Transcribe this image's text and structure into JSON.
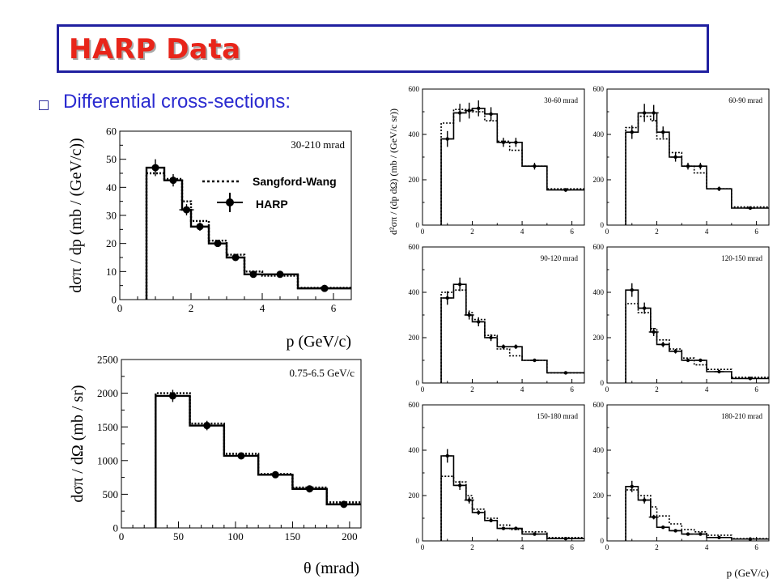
{
  "title": "HARP Data",
  "bullet": "Differential cross-sections:",
  "colors": {
    "title": "#e8251a",
    "title_border": "#2020a0",
    "bullet_text": "#2b2bd0",
    "bullet_box": "#3535a0"
  },
  "chart_data": [
    {
      "type": "line",
      "annotation": "30-210 mrad",
      "xlabel": "p (GeV/c)",
      "ylabel": "dσπ / dp (mb / (GeV/c))",
      "xlim": [
        0,
        6.5
      ],
      "ylim": [
        0,
        60
      ],
      "xticks": [
        "0",
        "2",
        "4",
        "6"
      ],
      "yticks": [
        "0",
        "10",
        "20",
        "30",
        "40",
        "50",
        "60"
      ],
      "legend": [
        "Sangford-Wang",
        "HARP"
      ],
      "series": [
        {
          "name": "Sangford-Wang",
          "style": "dotted step",
          "edges": [
            0.75,
            1.25,
            1.75,
            2.0,
            2.5,
            3.0,
            3.5,
            4.0,
            5.0,
            6.5
          ],
          "values": [
            45.0,
            43.0,
            35.0,
            28.0,
            21.0,
            16.0,
            10.0,
            8.5,
            4.2
          ]
        },
        {
          "name": "HARP",
          "style": "solid step with points",
          "edges": [
            0.75,
            1.25,
            1.75,
            2.0,
            2.5,
            3.0,
            3.5,
            4.0,
            5.0,
            6.5
          ],
          "values": [
            47.0,
            42.5,
            32.0,
            26.0,
            20.0,
            15.0,
            9.0,
            9.0,
            4.0
          ],
          "points": [
            {
              "x": 1.0,
              "y": 47.0,
              "err": 3.0
            },
            {
              "x": 1.5,
              "y": 42.5,
              "err": 2.2
            },
            {
              "x": 1.875,
              "y": 32.0,
              "err": 2.0
            },
            {
              "x": 2.25,
              "y": 26.0,
              "err": 1.5
            },
            {
              "x": 2.75,
              "y": 20.0,
              "err": 1.0
            },
            {
              "x": 3.25,
              "y": 15.0,
              "err": 0.8
            },
            {
              "x": 3.75,
              "y": 9.0,
              "err": 0.6
            },
            {
              "x": 4.5,
              "y": 9.0,
              "err": 0.5
            },
            {
              "x": 5.75,
              "y": 4.0,
              "err": 0.4
            }
          ]
        }
      ]
    },
    {
      "type": "line",
      "annotation": "0.75-6.5 GeV/c",
      "xlabel": "θ (mrad)",
      "ylabel": "dσπ / dΩ (mb / sr)",
      "xlim": [
        0,
        210
      ],
      "ylim": [
        0,
        2500
      ],
      "xticks": [
        "0",
        "50",
        "100",
        "150",
        "200"
      ],
      "yticks": [
        "0",
        "500",
        "1000",
        "1500",
        "2000",
        "2500"
      ],
      "series": [
        {
          "name": "Sangford-Wang",
          "style": "dotted step",
          "edges": [
            30,
            60,
            90,
            120,
            150,
            180,
            210
          ],
          "values": [
            2000,
            1550,
            1100,
            800,
            600,
            380
          ]
        },
        {
          "name": "HARP",
          "style": "solid step with points",
          "edges": [
            30,
            60,
            90,
            120,
            150,
            180,
            210
          ],
          "values": [
            1960,
            1520,
            1070,
            790,
            580,
            350
          ],
          "points": [
            {
              "x": 45,
              "y": 1960,
              "err": 90
            },
            {
              "x": 75,
              "y": 1520,
              "err": 70
            },
            {
              "x": 105,
              "y": 1070,
              "err": 50
            },
            {
              "x": 135,
              "y": 790,
              "err": 35
            },
            {
              "x": 165,
              "y": 580,
              "err": 30
            },
            {
              "x": 195,
              "y": 350,
              "err": 25
            }
          ]
        }
      ]
    },
    {
      "type": "line",
      "grid_layout": "3 rows x 2 columns",
      "xlabel": "p (GeV/c)",
      "ylabel": "d²σπ / (dp dΩ) (mb / (GeV/c sr))",
      "xlim": [
        0,
        6.5
      ],
      "ylim": [
        0,
        600
      ],
      "xticks": [
        "0",
        "2",
        "4",
        "6"
      ],
      "yticks": [
        "0",
        "200",
        "400",
        "600"
      ],
      "edges": [
        0.75,
        1.25,
        1.75,
        2.0,
        2.5,
        3.0,
        3.5,
        4.0,
        5.0,
        6.5
      ],
      "panels": [
        {
          "label": "30-60 mrad",
          "sw": [
            450,
            510,
            510,
            500,
            460,
            370,
            330,
            260,
            160
          ],
          "harp": [
            380,
            495,
            505,
            515,
            490,
            365,
            365,
            260,
            155
          ],
          "err": [
            35,
            40,
            35,
            35,
            30,
            20,
            20,
            15,
            8
          ]
        },
        {
          "label": "60-90 mrad",
          "sw": [
            430,
            480,
            460,
            380,
            320,
            260,
            230,
            160,
            80
          ],
          "harp": [
            410,
            495,
            495,
            410,
            300,
            260,
            260,
            160,
            75
          ],
          "err": [
            30,
            40,
            35,
            25,
            20,
            15,
            15,
            10,
            6
          ]
        },
        {
          "label": "90-120 mrad",
          "sw": [
            400,
            410,
            310,
            280,
            210,
            150,
            120,
            100,
            45
          ],
          "harp": [
            375,
            435,
            300,
            270,
            200,
            160,
            160,
            100,
            45
          ],
          "err": [
            30,
            30,
            20,
            20,
            15,
            10,
            10,
            7,
            4
          ]
        },
        {
          "label": "120-150 mrad",
          "sw": [
            350,
            310,
            240,
            190,
            150,
            110,
            80,
            60,
            25
          ],
          "harp": [
            410,
            330,
            225,
            170,
            140,
            100,
            100,
            50,
            20
          ],
          "err": [
            30,
            25,
            18,
            12,
            10,
            7,
            7,
            5,
            3
          ]
        },
        {
          "label": "150-180 mrad",
          "sw": [
            285,
            260,
            200,
            140,
            100,
            70,
            50,
            40,
            15
          ],
          "harp": [
            375,
            245,
            180,
            125,
            90,
            55,
            55,
            30,
            10
          ],
          "err": [
            30,
            20,
            15,
            10,
            8,
            5,
            5,
            4,
            2
          ]
        },
        {
          "label": "180-210 mrad",
          "sw": [
            225,
            200,
            150,
            110,
            75,
            50,
            40,
            25,
            10
          ],
          "harp": [
            240,
            180,
            105,
            60,
            45,
            30,
            30,
            15,
            8
          ],
          "err": [
            25,
            15,
            10,
            7,
            5,
            4,
            4,
            3,
            2
          ]
        }
      ]
    }
  ]
}
